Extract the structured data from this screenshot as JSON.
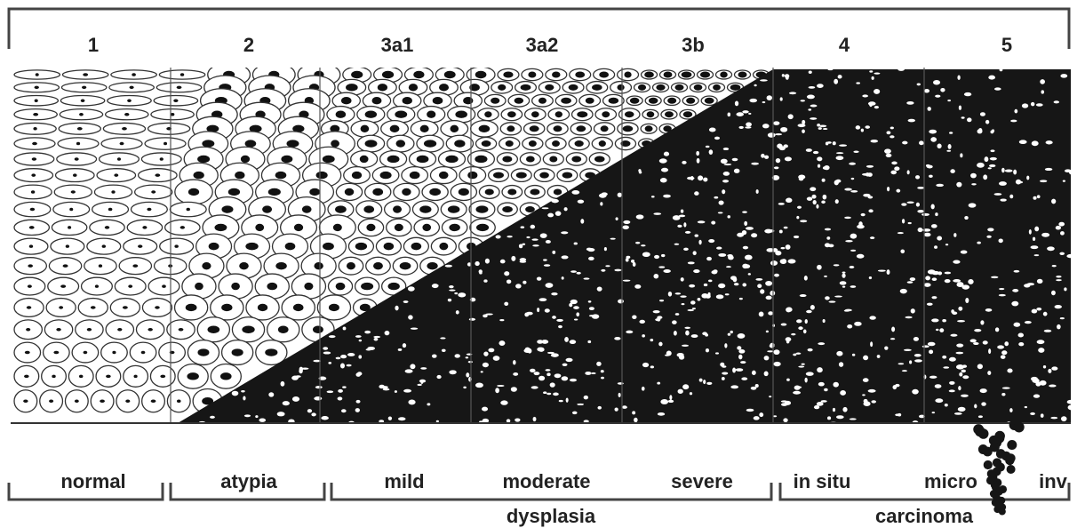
{
  "stages": [
    "1",
    "2",
    "3a1",
    "3a2",
    "3b",
    "4",
    "5"
  ],
  "grades": [
    "normal",
    "atypia",
    "mild",
    "moderate",
    "severe",
    "in situ",
    "micro",
    "inv"
  ],
  "groups": [
    "dysplasia",
    "carcinoma"
  ]
}
